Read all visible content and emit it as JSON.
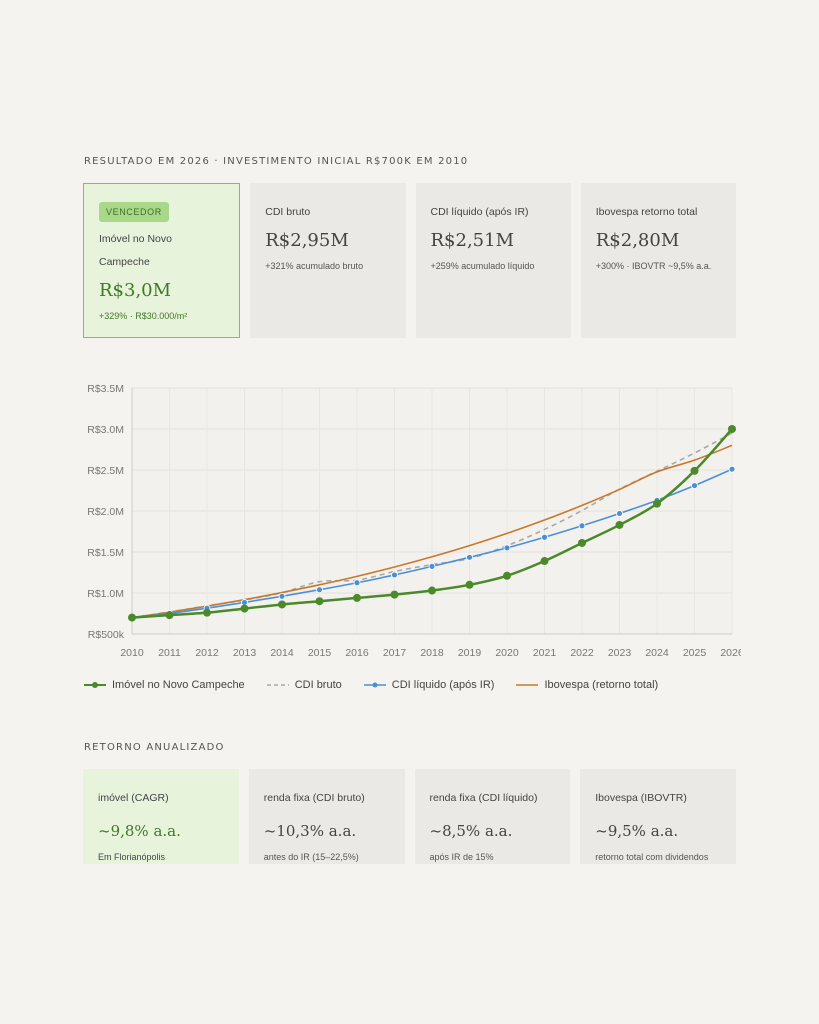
{
  "header": {
    "title": "RESULTADO EM 2026 · INVESTIMENTO INICIAL R$700K EM 2010"
  },
  "top_cards": [
    {
      "badge": "VENCEDOR",
      "label": "Imóvel no Novo Campeche",
      "value": "R$3,0M",
      "sub": "+329% · R$30.000/m²"
    },
    {
      "label": "CDI bruto",
      "value": "R$2,95M",
      "sub": "+321% acumulado bruto"
    },
    {
      "label": "CDI líquido (após IR)",
      "value": "R$2,51M",
      "sub": "+259% acumulado líquido"
    },
    {
      "label": "Ibovespa retorno total",
      "value": "R$2,80M",
      "sub": "+300% · IBOVTR ~9,5% a.a."
    }
  ],
  "chart_data": {
    "type": "line",
    "x": [
      2010,
      2011,
      2012,
      2013,
      2014,
      2015,
      2016,
      2017,
      2018,
      2019,
      2020,
      2021,
      2022,
      2023,
      2024,
      2025,
      2026
    ],
    "x_tick_labels": [
      "2010",
      "2011",
      "2012",
      "2013",
      "2014",
      "2015",
      "2016",
      "2017",
      "2018",
      "2019",
      "2020",
      "2021",
      "2022",
      "2023",
      "2024",
      "2025",
      "2026"
    ],
    "ylim": [
      500000,
      3500000
    ],
    "y_ticks": [
      500000,
      1000000,
      1500000,
      2000000,
      2500000,
      3000000,
      3500000
    ],
    "y_tick_labels": [
      "R$500k",
      "R$1.0M",
      "R$1.5M",
      "R$2.0M",
      "R$2.5M",
      "R$3.0M",
      "R$3.5M"
    ],
    "grid": true,
    "legend_position": "bottom-left",
    "series": [
      {
        "name": "Imóvel no Novo Campeche",
        "color": "#4a8a2a",
        "style": "solid-markers-large",
        "values": [
          700000,
          730000,
          760000,
          810000,
          860000,
          900000,
          940000,
          980000,
          1030000,
          1100000,
          1210000,
          1390000,
          1610000,
          1830000,
          2090000,
          2490000,
          3000000
        ]
      },
      {
        "name": "CDI bruto",
        "color": "#a9a9a9",
        "style": "dashed",
        "values": [
          700000,
          769000,
          843000,
          914000,
          1004000,
          1138000,
          1157000,
          1262000,
          1347000,
          1421000,
          1577000,
          1775000,
          2006000,
          2267000,
          2485000,
          2707000,
          2950000
        ]
      },
      {
        "name": "CDI líquido (após IR)",
        "color": "#4a90d9",
        "style": "solid-markers-small",
        "values": [
          700000,
          750000,
          815000,
          885000,
          960000,
          1040000,
          1125000,
          1220000,
          1325000,
          1435000,
          1550000,
          1680000,
          1820000,
          1970000,
          2130000,
          2310000,
          2510000
        ]
      },
      {
        "name": "Ibovespa (retorno total)",
        "color": "#c8782a",
        "style": "solid",
        "values": [
          700000,
          766000,
          839000,
          918000,
          1005000,
          1100000,
          1203000,
          1317000,
          1442000,
          1578000,
          1727000,
          1890000,
          2068000,
          2263000,
          2477000,
          2620000,
          2800000
        ]
      }
    ]
  },
  "section2": {
    "title": "RETORNO ANUALIZADO"
  },
  "bottom_cards": [
    {
      "label": "imóvel (CAGR)",
      "value": "~9,8% a.a.",
      "sub": "Em Florianópolis"
    },
    {
      "label": "renda fixa (CDI bruto)",
      "value": "~10,3% a.a.",
      "sub": "antes do IR (15–22,5%)"
    },
    {
      "label": "renda fixa (CDI líquido)",
      "value": "~8,5% a.a.",
      "sub": "após IR de 15%"
    },
    {
      "label": "Ibovespa (IBOVTR)",
      "value": "~9,5% a.a.",
      "sub": "retorno total com dividendos"
    }
  ]
}
